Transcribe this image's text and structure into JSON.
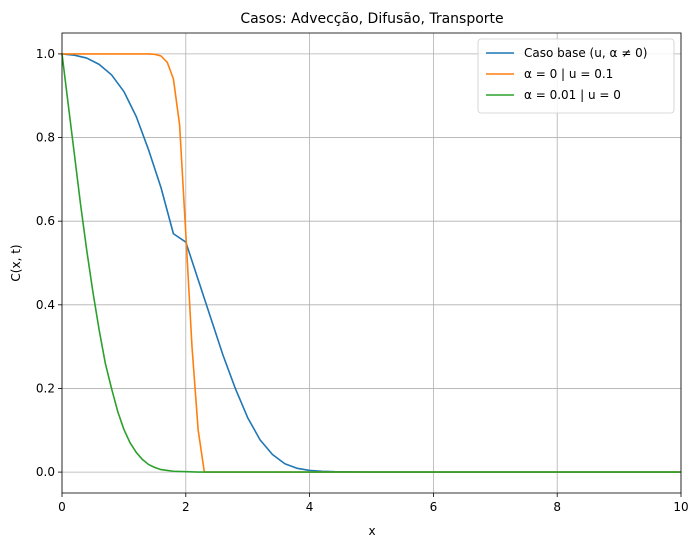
{
  "chart_data": {
    "type": "line",
    "title": "Casos: Advecção, Difusão, Transporte",
    "xlabel": "x",
    "ylabel": "C(x, t)",
    "xlim": [
      0,
      10
    ],
    "ylim": [
      -0.05,
      1.05
    ],
    "xticks": [
      0,
      2,
      4,
      6,
      8,
      10
    ],
    "yticks": [
      0.0,
      0.2,
      0.4,
      0.6,
      0.8,
      1.0
    ],
    "xtick_labels": [
      "0",
      "2",
      "4",
      "6",
      "8",
      "10"
    ],
    "ytick_labels": [
      "0.0",
      "0.2",
      "0.4",
      "0.6",
      "0.8",
      "1.0"
    ],
    "grid": true,
    "legend_position": "top-right",
    "series": [
      {
        "name": "Caso base (u, α ≠ 0)",
        "color": "#1f77b4",
        "x": [
          0,
          0.2,
          0.4,
          0.6,
          0.8,
          1.0,
          1.2,
          1.4,
          1.6,
          1.8,
          2.0,
          2.2,
          2.4,
          2.6,
          2.8,
          3.0,
          3.2,
          3.4,
          3.6,
          3.8,
          4.0,
          4.2,
          4.4,
          5.0,
          6.0,
          8.0,
          10.0
        ],
        "y": [
          1.0,
          0.997,
          0.99,
          0.975,
          0.95,
          0.91,
          0.85,
          0.77,
          0.68,
          0.57,
          0.55,
          0.46,
          0.37,
          0.28,
          0.2,
          0.13,
          0.077,
          0.042,
          0.02,
          0.009,
          0.004,
          0.002,
          0.001,
          0.0,
          0.0,
          0.0,
          0.0
        ]
      },
      {
        "name": "α = 0 | u = 0.1",
        "color": "#ff7f0e",
        "x": [
          0,
          0.5,
          1.0,
          1.4,
          1.5,
          1.6,
          1.7,
          1.8,
          1.9,
          2.0,
          2.1,
          2.2,
          2.3,
          10.0
        ],
        "y": [
          1.0,
          1.0,
          1.0,
          1.0,
          0.999,
          0.995,
          0.98,
          0.94,
          0.83,
          0.57,
          0.3,
          0.1,
          0.0,
          0.0
        ]
      },
      {
        "name": "α = 0.01 | u = 0",
        "color": "#2ca02c",
        "x": [
          0,
          0.1,
          0.2,
          0.3,
          0.4,
          0.5,
          0.6,
          0.7,
          0.8,
          0.9,
          1.0,
          1.1,
          1.2,
          1.3,
          1.4,
          1.5,
          1.6,
          1.7,
          1.8,
          2.0,
          2.2,
          2.5,
          3.0,
          10.0
        ],
        "y": [
          1.0,
          0.88,
          0.76,
          0.64,
          0.53,
          0.43,
          0.34,
          0.26,
          0.2,
          0.145,
          0.102,
          0.07,
          0.047,
          0.03,
          0.018,
          0.011,
          0.006,
          0.004,
          0.002,
          0.001,
          0.0,
          0.0,
          0.0,
          0.0
        ]
      }
    ]
  }
}
